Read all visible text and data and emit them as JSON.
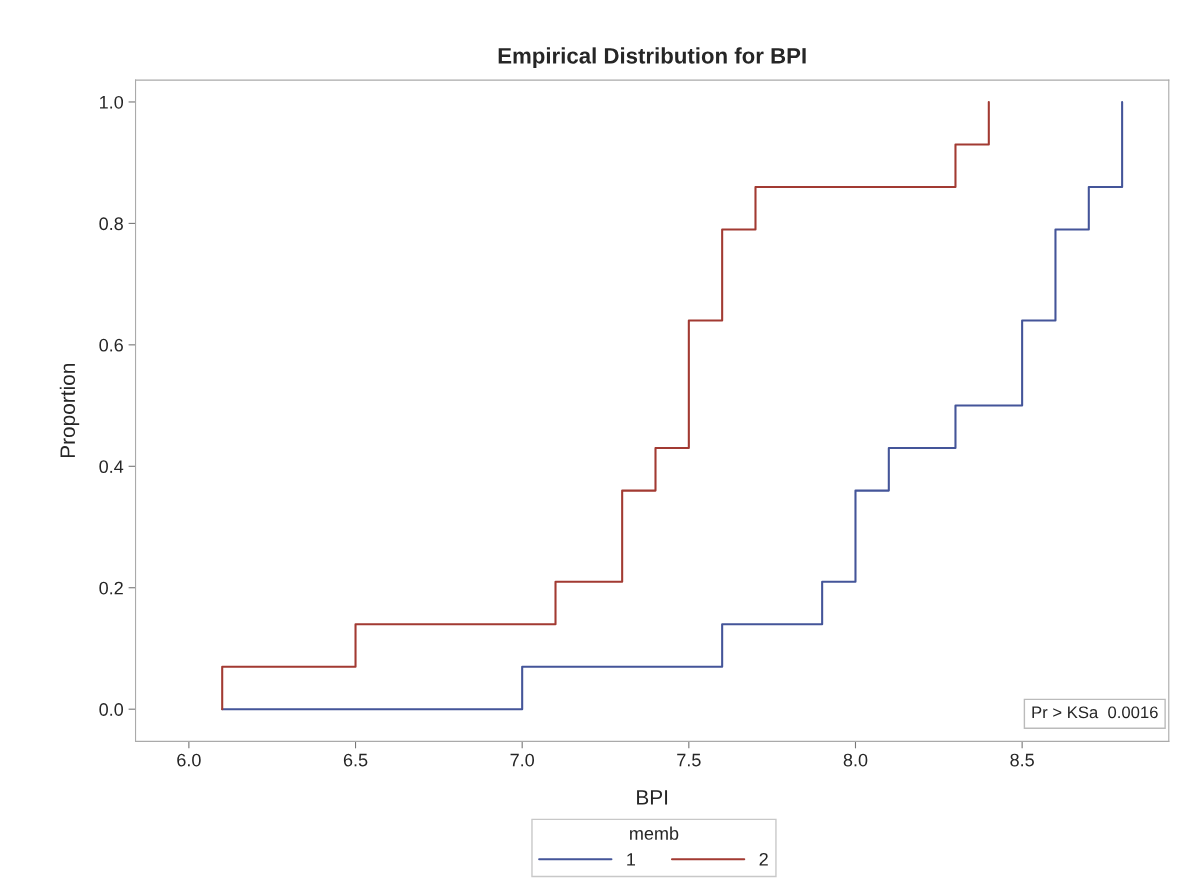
{
  "chart_data": {
    "type": "step",
    "title": "Empirical Distribution for BPI",
    "xlabel": "BPI",
    "ylabel": "Proportion",
    "legend_title": "memb",
    "series": [
      {
        "name": "1",
        "color": "#445599",
        "x": [
          6.1,
          7.0,
          7.6,
          7.9,
          8.0,
          8.1,
          8.3,
          8.5,
          8.6,
          8.7,
          8.8,
          8.8
        ],
        "values": [
          0,
          0.07,
          0.14,
          0.21,
          0.36,
          0.43,
          0.5,
          0.64,
          0.79,
          0.86,
          1.0,
          1.0
        ]
      },
      {
        "name": "2",
        "color": "#a23a32",
        "x": [
          6.1,
          6.1,
          6.5,
          7.1,
          7.3,
          7.4,
          7.5,
          7.6,
          7.7,
          8.3,
          8.4,
          8.4
        ],
        "values": [
          0,
          0.07,
          0.14,
          0.21,
          0.36,
          0.43,
          0.64,
          0.79,
          0.86,
          0.93,
          1.0,
          1.0
        ]
      }
    ],
    "xlim": [
      5.84,
      8.94
    ],
    "ylim": [
      -0.053,
      1.036
    ],
    "xticks": [
      {
        "value": 6,
        "label": "6.0"
      },
      {
        "value": 6.5,
        "label": "6.5"
      },
      {
        "value": 7,
        "label": "7.0"
      },
      {
        "value": 7.5,
        "label": "7.5"
      },
      {
        "value": 8,
        "label": "8.0"
      },
      {
        "value": 8.5,
        "label": "8.5"
      }
    ],
    "yticks": [
      {
        "value": 0,
        "label": "0.0"
      },
      {
        "value": 0.2,
        "label": "0.2"
      },
      {
        "value": 0.4,
        "label": "0.4"
      },
      {
        "value": 0.6,
        "label": "0.6"
      },
      {
        "value": 0.8,
        "label": "0.8"
      },
      {
        "value": 1,
        "label": "1.0"
      }
    ],
    "annotations": [
      "Pr > KSa  0.0016"
    ],
    "grid": false,
    "legend": "bottom",
    "line_style": "solid",
    "marker": "none"
  }
}
